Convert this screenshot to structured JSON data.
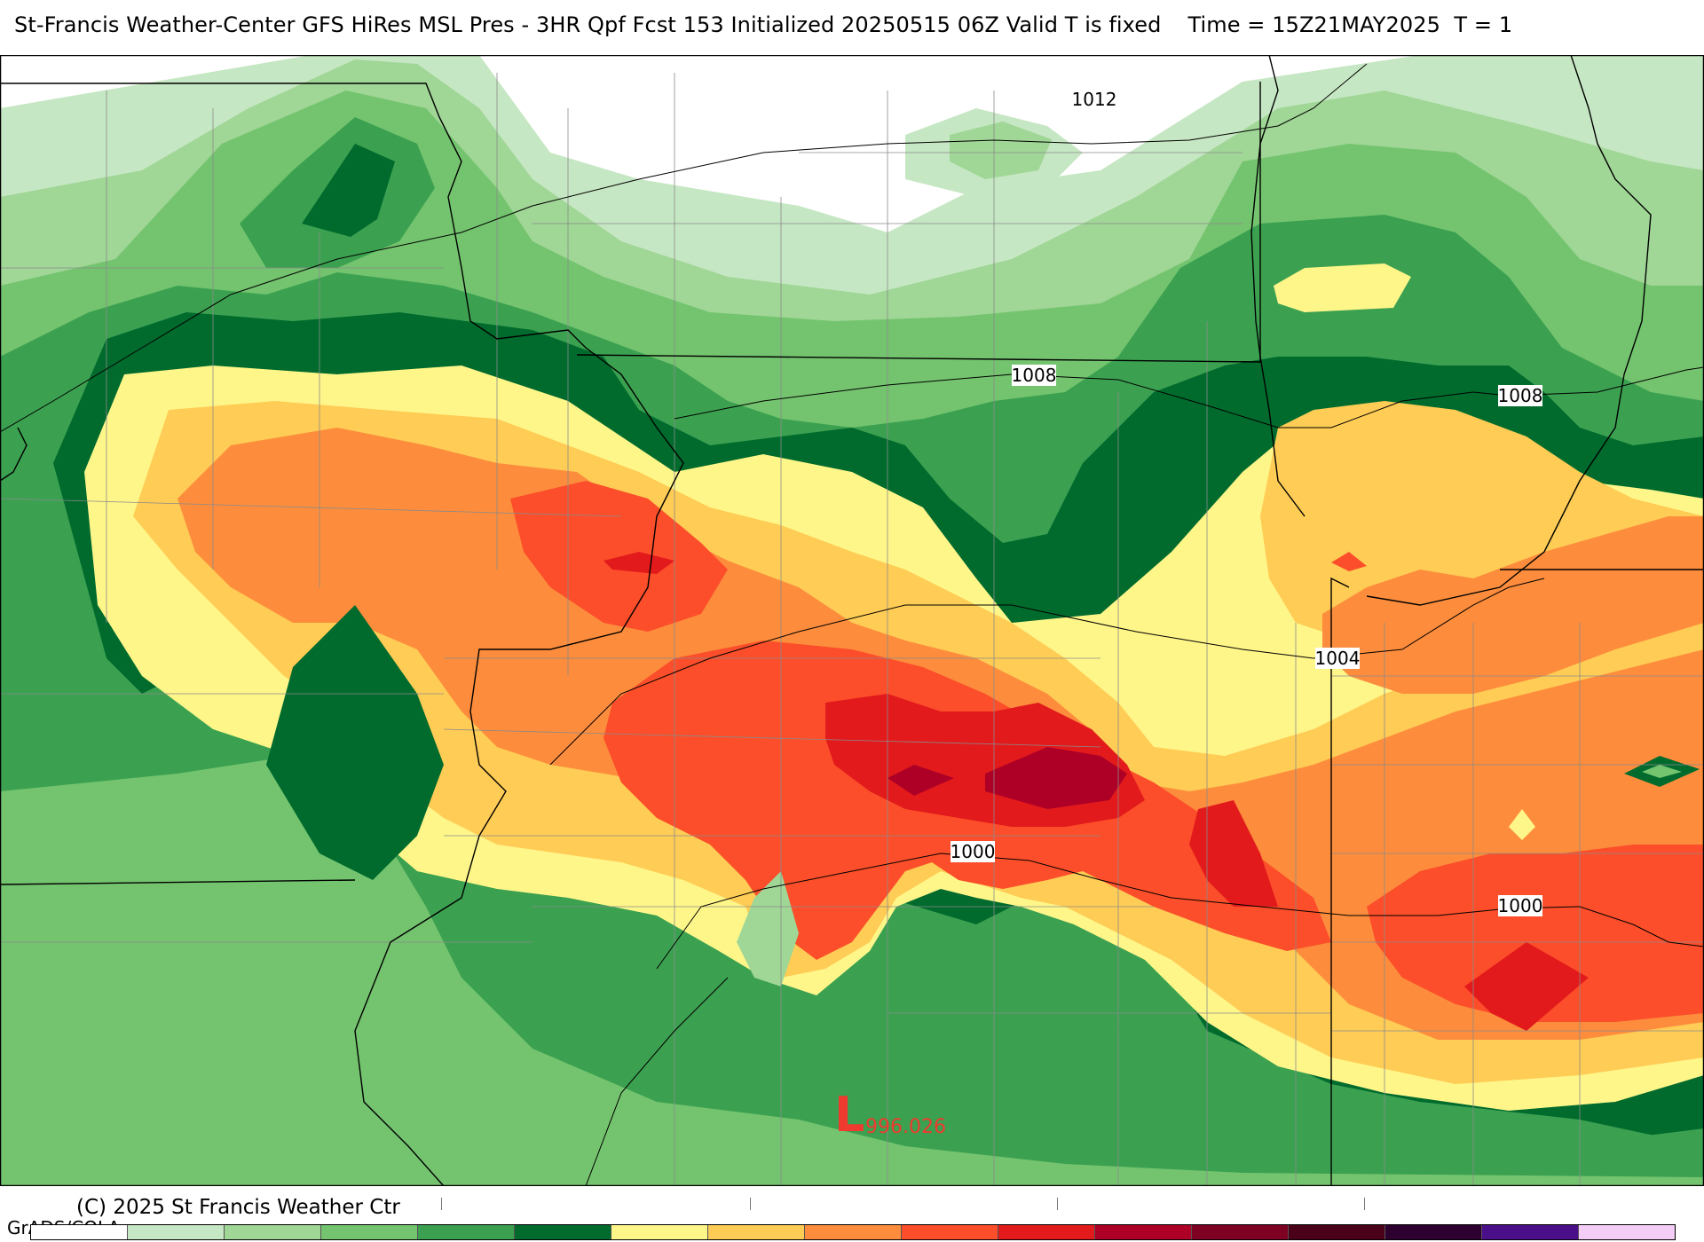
{
  "title": {
    "main": "St-Francis Weather-Center GFS HiRes MSL Pres - 3HR Qpf Fcst 153 Initialized 20250515 06Z Valid T is fixed",
    "time": "Time = 15Z21MAY2025  T = 1"
  },
  "isobars": {
    "labels": [
      "1012",
      "1008",
      "1008",
      "1004",
      "1000",
      "1000"
    ],
    "low_marker": {
      "letter": "L",
      "value": "996.026",
      "color": "#ef3a2f"
    }
  },
  "qpf_palette": [
    "#ffffff",
    "#c6e7c3",
    "#a0d696",
    "#74c46f",
    "#3ba150",
    "#006b2d",
    "#fff68a",
    "#ffcc55",
    "#fd8d3c",
    "#fc4e2a",
    "#e31a1c",
    "#ae0026",
    "#7e0023",
    "#4a0019",
    "#2d0030",
    "#4b0f8a",
    "#f4cdf6"
  ],
  "footer": {
    "copyright": "(C) 2025 St Francis Weather Ctr",
    "grads": "GrADS/COLA"
  }
}
